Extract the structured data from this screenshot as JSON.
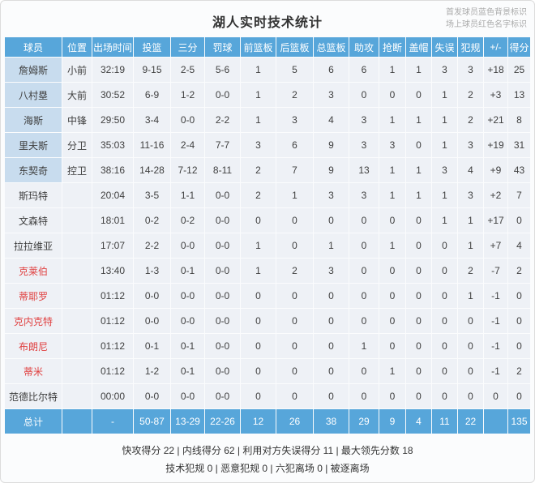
{
  "title": "湖人实时技术统计",
  "legend": {
    "line1": "首发球员蓝色背景标识",
    "line2": "场上球员红色名字标识"
  },
  "table": {
    "headers": [
      "球员",
      "位置",
      "出场时间",
      "投篮",
      "三分",
      "罚球",
      "前篮板",
      "后篮板",
      "总篮板",
      "助攻",
      "抢断",
      "盖帽",
      "失误",
      "犯规",
      "+/-",
      "得分"
    ],
    "rows": [
      {
        "name": "詹姆斯",
        "starter": true,
        "oncourt": false,
        "cells": [
          "小前",
          "32:19",
          "9-15",
          "2-5",
          "5-6",
          "1",
          "5",
          "6",
          "6",
          "1",
          "1",
          "3",
          "3",
          "+18",
          "25"
        ]
      },
      {
        "name": "八村塁",
        "starter": true,
        "oncourt": false,
        "cells": [
          "大前",
          "30:52",
          "6-9",
          "1-2",
          "0-0",
          "1",
          "2",
          "3",
          "0",
          "0",
          "0",
          "1",
          "2",
          "+3",
          "13"
        ]
      },
      {
        "name": "海斯",
        "starter": true,
        "oncourt": false,
        "cells": [
          "中锋",
          "29:50",
          "3-4",
          "0-0",
          "2-2",
          "1",
          "3",
          "4",
          "3",
          "1",
          "1",
          "1",
          "2",
          "+21",
          "8"
        ]
      },
      {
        "name": "里夫斯",
        "starter": true,
        "oncourt": false,
        "cells": [
          "分卫",
          "35:03",
          "11-16",
          "2-4",
          "7-7",
          "3",
          "6",
          "9",
          "3",
          "3",
          "0",
          "1",
          "3",
          "+19",
          "31"
        ]
      },
      {
        "name": "东契奇",
        "starter": true,
        "oncourt": false,
        "cells": [
          "控卫",
          "38:16",
          "14-28",
          "7-12",
          "8-11",
          "2",
          "7",
          "9",
          "13",
          "1",
          "1",
          "3",
          "4",
          "+9",
          "43"
        ]
      },
      {
        "name": "斯玛特",
        "starter": false,
        "oncourt": false,
        "cells": [
          "",
          "20:04",
          "3-5",
          "1-1",
          "0-0",
          "2",
          "1",
          "3",
          "3",
          "1",
          "1",
          "1",
          "3",
          "+2",
          "7"
        ]
      },
      {
        "name": "文森特",
        "starter": false,
        "oncourt": false,
        "cells": [
          "",
          "18:01",
          "0-2",
          "0-2",
          "0-0",
          "0",
          "0",
          "0",
          "0",
          "0",
          "0",
          "1",
          "1",
          "+17",
          "0"
        ]
      },
      {
        "name": "拉拉维亚",
        "starter": false,
        "oncourt": false,
        "cells": [
          "",
          "17:07",
          "2-2",
          "0-0",
          "0-0",
          "1",
          "0",
          "1",
          "0",
          "1",
          "0",
          "0",
          "1",
          "+7",
          "4"
        ]
      },
      {
        "name": "克莱伯",
        "starter": false,
        "oncourt": true,
        "cells": [
          "",
          "13:40",
          "1-3",
          "0-1",
          "0-0",
          "1",
          "2",
          "3",
          "0",
          "0",
          "0",
          "0",
          "2",
          "-7",
          "2"
        ]
      },
      {
        "name": "蒂耶罗",
        "starter": false,
        "oncourt": true,
        "cells": [
          "",
          "01:12",
          "0-0",
          "0-0",
          "0-0",
          "0",
          "0",
          "0",
          "0",
          "0",
          "0",
          "0",
          "1",
          "-1",
          "0"
        ]
      },
      {
        "name": "克内克特",
        "starter": false,
        "oncourt": true,
        "cells": [
          "",
          "01:12",
          "0-0",
          "0-0",
          "0-0",
          "0",
          "0",
          "0",
          "0",
          "0",
          "0",
          "0",
          "0",
          "-1",
          "0"
        ]
      },
      {
        "name": "布朗尼",
        "starter": false,
        "oncourt": true,
        "cells": [
          "",
          "01:12",
          "0-1",
          "0-1",
          "0-0",
          "0",
          "0",
          "0",
          "1",
          "0",
          "0",
          "0",
          "0",
          "-1",
          "0"
        ]
      },
      {
        "name": "蒂米",
        "starter": false,
        "oncourt": true,
        "cells": [
          "",
          "01:12",
          "1-2",
          "0-1",
          "0-0",
          "0",
          "0",
          "0",
          "0",
          "1",
          "0",
          "0",
          "0",
          "-1",
          "2"
        ]
      },
      {
        "name": "范德比尔特",
        "starter": false,
        "oncourt": false,
        "cells": [
          "",
          "00:00",
          "0-0",
          "0-0",
          "0-0",
          "0",
          "0",
          "0",
          "0",
          "0",
          "0",
          "0",
          "0",
          "0",
          "0"
        ]
      }
    ],
    "total": {
      "name": "总计",
      "cells": [
        "",
        "-",
        "50-87",
        "13-29",
        "22-26",
        "12",
        "26",
        "38",
        "29",
        "9",
        "4",
        "11",
        "22",
        "",
        "135"
      ]
    }
  },
  "footer": {
    "line1_items": [
      "快攻得分 22",
      "内线得分 62",
      "利用对方失误得分 11",
      "最大领先分数 18"
    ],
    "line2_items": [
      "技术犯规 0",
      "恶意犯规 0",
      "六犯离场 0",
      "被逐离场"
    ],
    "separator": " | "
  },
  "colors": {
    "header_bg": "#57a6da",
    "starter_bg": "#c8dcee",
    "oncourt_name": "#e04141",
    "row_bg": "#eef1f6",
    "total_bg": "#57a6da"
  }
}
